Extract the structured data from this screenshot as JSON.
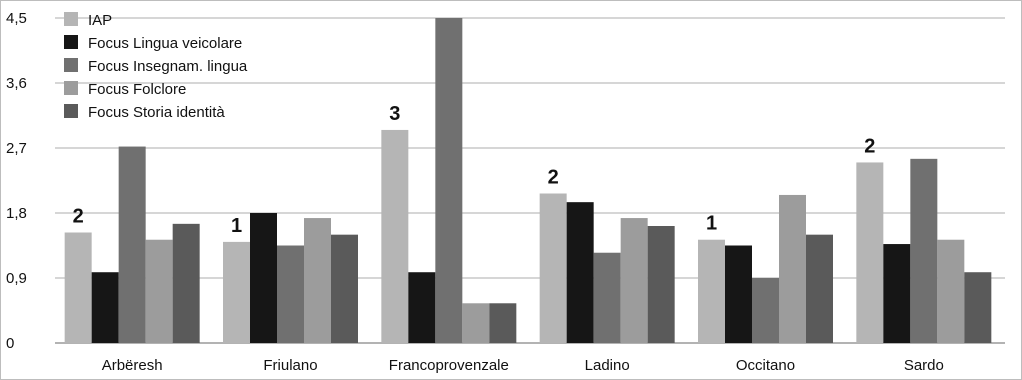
{
  "chart_data": {
    "type": "bar",
    "categories": [
      "Arbëresh",
      "Friulano",
      "Francoprovenzale",
      "Ladino",
      "Occitano",
      "Sardo"
    ],
    "series": [
      {
        "name": "IAP",
        "values": [
          1.53,
          1.4,
          2.95,
          2.07,
          1.43,
          2.5
        ],
        "color": "#b5b5b5"
      },
      {
        "name": "Focus Lingua veicolare",
        "values": [
          0.98,
          1.8,
          0.98,
          1.95,
          1.35,
          1.37
        ],
        "color": "#161616"
      },
      {
        "name": "Focus Insegnam. lingua",
        "values": [
          2.72,
          1.35,
          4.5,
          1.25,
          0.9,
          2.55
        ],
        "color": "#707070"
      },
      {
        "name": "Focus Folclore",
        "values": [
          1.43,
          1.73,
          0.55,
          1.73,
          2.05,
          1.43
        ],
        "color": "#9c9c9c"
      },
      {
        "name": "Focus Storia identità",
        "values": [
          1.65,
          1.5,
          0.55,
          1.62,
          1.5,
          0.98
        ],
        "color": "#5a5a5a"
      }
    ],
    "annotations": [
      "2",
      "1",
      "3",
      "2",
      "1",
      "2"
    ],
    "yticks": [
      "0",
      "0,9",
      "1,8",
      "2,7",
      "3,6",
      "4,5"
    ],
    "ylim": [
      0,
      4.5
    ],
    "grid": true,
    "legend_position": "top-left",
    "title": "",
    "xlabel": "",
    "ylabel": ""
  }
}
